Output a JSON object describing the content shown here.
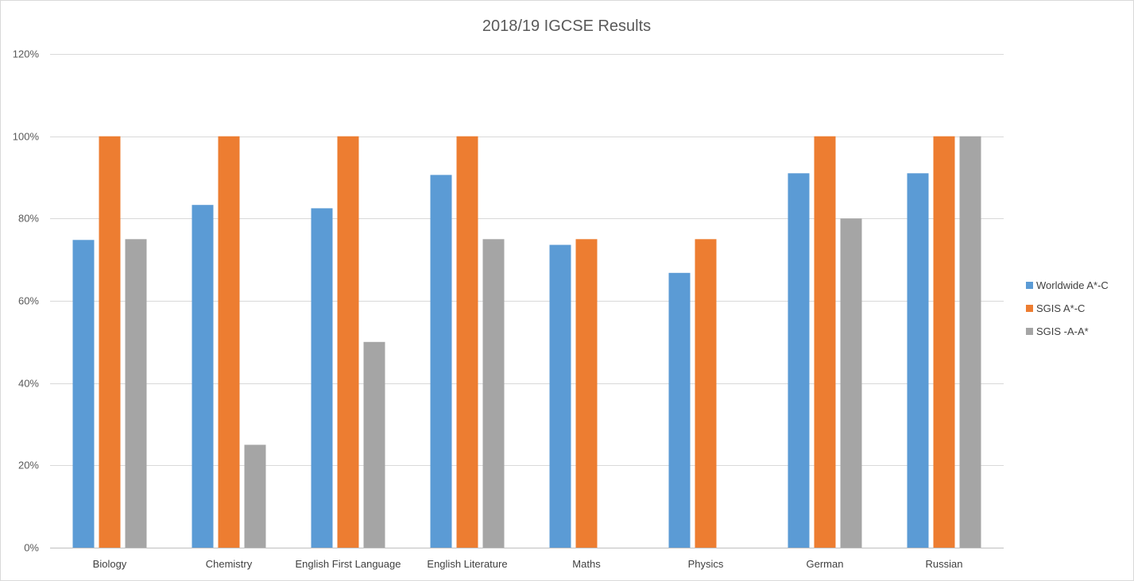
{
  "chart_data": {
    "type": "bar",
    "title": "2018/19 IGCSE Results",
    "xlabel": "",
    "ylabel": "",
    "categories": [
      "Biology",
      "Chemistry",
      "English First Language",
      "English Literature",
      "Maths",
      "Physics",
      "German",
      "Russian"
    ],
    "series": [
      {
        "name": "Worldwide A*-C",
        "color": "#5b9bd5",
        "values": [
          74.8,
          83.3,
          82.5,
          90.6,
          73.6,
          66.8,
          91.0,
          91.0
        ]
      },
      {
        "name": "SGIS A*-C",
        "color": "#ed7d31",
        "values": [
          100,
          100,
          100,
          100,
          75,
          75,
          100,
          100
        ]
      },
      {
        "name": "SGIS -A-A*",
        "color": "#a5a5a5",
        "values": [
          75,
          25,
          50,
          75,
          null,
          null,
          80,
          100
        ]
      }
    ],
    "ylim": [
      0,
      120
    ],
    "yticks": [
      0,
      20,
      40,
      60,
      80,
      100,
      120
    ],
    "ytick_labels": [
      "0%",
      "20%",
      "40%",
      "60%",
      "80%",
      "100%",
      "120%"
    ],
    "grid": true,
    "legend": "right"
  }
}
